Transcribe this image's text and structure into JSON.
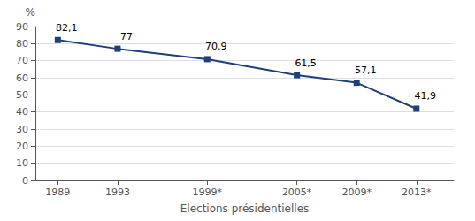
{
  "chart_data": {
    "type": "line",
    "x": [
      1989,
      1993,
      1999,
      2005,
      2009,
      2013
    ],
    "values": [
      82.1,
      77.0,
      70.9,
      61.5,
      57.1,
      41.9
    ],
    "value_labels": [
      "82,1",
      "77",
      "70,9",
      "61,5",
      "57,1",
      "41,9"
    ],
    "data_labels": true,
    "color": "#1e3f7a",
    "marker": "square",
    "xlabel": "Elections présidentielles",
    "ylabel": "%",
    "xlim": [
      1987.5,
      2015.5
    ],
    "xticks": [
      1989,
      1993,
      {
        "value": 1999,
        "label": "1999*"
      },
      {
        "value": 2005,
        "label": "2005*"
      },
      {
        "value": 2009,
        "label": "2009*"
      },
      {
        "value": 2013,
        "label": "2013*"
      }
    ],
    "ylim": [
      0,
      90
    ],
    "yticks": [
      0,
      10,
      20,
      30,
      40,
      50,
      60,
      70,
      80,
      90
    ],
    "grid": true
  }
}
